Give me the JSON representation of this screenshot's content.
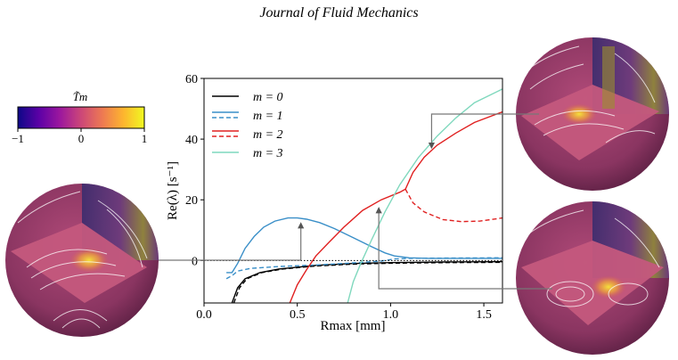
{
  "header": {
    "journal": "Journal of Fluid Mechanics"
  },
  "colorbar": {
    "label": "T̃m",
    "ticks": [
      "−1",
      "0",
      "1"
    ],
    "colormap": [
      "#0d0887",
      "#5c01a6",
      "#9c179e",
      "#cc4778",
      "#ed7953",
      "#fdb42f",
      "#f0f921"
    ]
  },
  "chart_data": {
    "type": "line",
    "xlabel": "Rmax [mm]",
    "ylabel": "Re(λ) [s⁻¹]",
    "xlim": [
      0.0,
      1.6
    ],
    "ylim": [
      -14,
      60
    ],
    "xticks": [
      0.0,
      0.5,
      1.0,
      1.5
    ],
    "xtick_labels": [
      "0.0",
      "0.5",
      "1.0",
      "1.5"
    ],
    "yticks": [
      0,
      20,
      40,
      60
    ],
    "ytick_labels": [
      "0",
      "20",
      "40",
      "60"
    ],
    "grid": false,
    "legend_position": "top-left",
    "legend": [
      {
        "label": "m = 0",
        "color": "#000000",
        "styles": [
          "solid"
        ]
      },
      {
        "label": "m = 1",
        "color": "#3a8fc8",
        "styles": [
          "solid",
          "dashed"
        ]
      },
      {
        "label": "m = 2",
        "color": "#e02020",
        "styles": [
          "solid",
          "dashed"
        ]
      },
      {
        "label": "m = 3",
        "color": "#7fd8bd",
        "styles": [
          "solid"
        ]
      }
    ],
    "series": [
      {
        "m": 0,
        "color": "#000000",
        "dash": "solid",
        "points": [
          [
            0.15,
            -14
          ],
          [
            0.18,
            -9
          ],
          [
            0.22,
            -6
          ],
          [
            0.3,
            -4
          ],
          [
            0.4,
            -2.8
          ],
          [
            0.6,
            -1.6
          ],
          [
            0.8,
            -1.0
          ],
          [
            1.0,
            -0.7
          ],
          [
            1.3,
            -0.5
          ],
          [
            1.6,
            -0.4
          ]
        ]
      },
      {
        "m": 0,
        "color": "#000000",
        "dash": "dashed",
        "points": [
          [
            0.16,
            -14
          ],
          [
            0.19,
            -9
          ],
          [
            0.23,
            -6
          ],
          [
            0.31,
            -4
          ],
          [
            0.42,
            -2.8
          ],
          [
            0.6,
            -1.8
          ],
          [
            0.8,
            -1.2
          ],
          [
            1.0,
            -0.9
          ],
          [
            1.3,
            -0.7
          ],
          [
            1.6,
            -0.6
          ]
        ]
      },
      {
        "m": 1,
        "color": "#3a8fc8",
        "dash": "solid",
        "points": [
          [
            0.12,
            -4
          ],
          [
            0.15,
            -4
          ],
          [
            0.18,
            -1
          ],
          [
            0.22,
            4
          ],
          [
            0.27,
            8
          ],
          [
            0.32,
            11
          ],
          [
            0.38,
            13
          ],
          [
            0.45,
            14
          ],
          [
            0.5,
            14
          ],
          [
            0.55,
            13.6
          ],
          [
            0.62,
            12.5
          ],
          [
            0.7,
            10.5
          ],
          [
            0.8,
            7.5
          ],
          [
            0.9,
            4.5
          ],
          [
            0.97,
            2.5
          ],
          [
            1.02,
            1.5
          ],
          [
            1.1,
            0.9
          ],
          [
            1.2,
            0.7
          ],
          [
            1.4,
            0.7
          ],
          [
            1.6,
            0.7
          ]
        ]
      },
      {
        "m": 1,
        "color": "#3a8fc8",
        "dash": "dashed",
        "points": [
          [
            0.12,
            -6
          ],
          [
            0.15,
            -5
          ],
          [
            0.18,
            -3.5
          ],
          [
            0.25,
            -2.6
          ],
          [
            0.4,
            -2
          ],
          [
            0.6,
            -1.5
          ],
          [
            0.8,
            -0.8
          ],
          [
            0.95,
            -0.2
          ],
          [
            1.02,
            0.5
          ],
          [
            1.1,
            0.7
          ],
          [
            1.3,
            0.8
          ],
          [
            1.6,
            0.9
          ]
        ]
      },
      {
        "m": 2,
        "color": "#e02020",
        "dash": "solid",
        "points": [
          [
            0.46,
            -14
          ],
          [
            0.5,
            -8
          ],
          [
            0.55,
            -3
          ],
          [
            0.6,
            1.5
          ],
          [
            0.67,
            6
          ],
          [
            0.75,
            11
          ],
          [
            0.85,
            16.5
          ],
          [
            0.95,
            20
          ],
          [
            1.05,
            22.5
          ],
          [
            1.08,
            23.5
          ],
          [
            1.12,
            29
          ],
          [
            1.18,
            34
          ],
          [
            1.25,
            38
          ],
          [
            1.35,
            42
          ],
          [
            1.45,
            45.5
          ],
          [
            1.6,
            49
          ]
        ]
      },
      {
        "m": 2,
        "color": "#e02020",
        "dash": "dashed",
        "points": [
          [
            1.08,
            23.5
          ],
          [
            1.12,
            19
          ],
          [
            1.18,
            16
          ],
          [
            1.28,
            13.5
          ],
          [
            1.38,
            12.8
          ],
          [
            1.48,
            13
          ],
          [
            1.6,
            14
          ]
        ]
      },
      {
        "m": 3,
        "color": "#7fd8bd",
        "dash": "solid",
        "points": [
          [
            0.77,
            -14
          ],
          [
            0.8,
            -7
          ],
          [
            0.84,
            -1
          ],
          [
            0.9,
            7
          ],
          [
            0.97,
            16
          ],
          [
            1.05,
            25
          ],
          [
            1.15,
            34
          ],
          [
            1.25,
            41
          ],
          [
            1.35,
            47
          ],
          [
            1.45,
            52
          ],
          [
            1.6,
            56.5
          ]
        ]
      }
    ],
    "reference_lines": [
      {
        "y": 0,
        "style": "dotted",
        "color": "#000000"
      }
    ],
    "annotations": [
      {
        "target": [
          0.5,
          14
        ],
        "links_to": "sphere-left"
      },
      {
        "target": [
          1.22,
          36
        ],
        "links_to": "sphere-top-right"
      },
      {
        "target": [
          0.87,
          19
        ],
        "links_to": "sphere-bottom-right"
      }
    ]
  }
}
